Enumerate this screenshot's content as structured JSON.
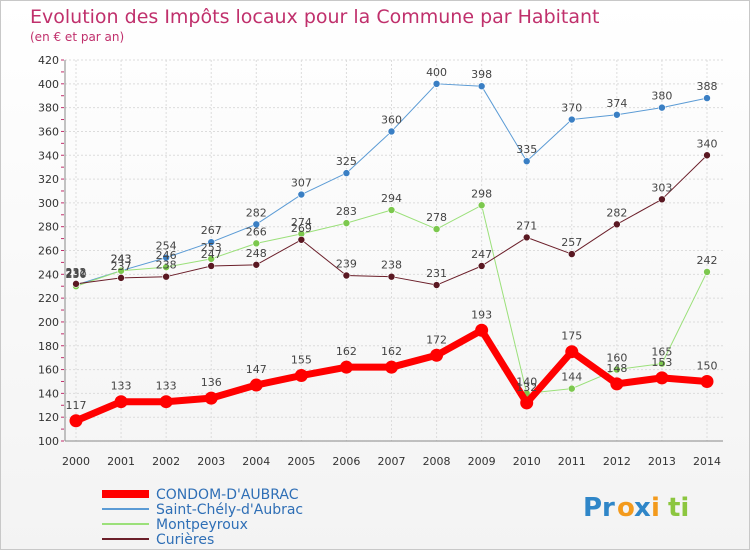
{
  "chart_data": {
    "type": "line",
    "title": "Evolution des Impôts locaux pour la Commune par Habitant",
    "subtitle": "(en € et par an)",
    "xlabel": "",
    "ylabel": "",
    "x": [
      "2000",
      "2001",
      "2002",
      "2003",
      "2004",
      "2005",
      "2006",
      "2007",
      "2008",
      "2009",
      "2010",
      "2011",
      "2012",
      "2013",
      "2014"
    ],
    "ylim": [
      100,
      420
    ],
    "yticks": [
      100,
      120,
      140,
      160,
      180,
      200,
      220,
      240,
      260,
      280,
      300,
      320,
      340,
      360,
      380,
      400,
      420
    ],
    "grid": true,
    "legend_position": "bottom",
    "series": [
      {
        "name": "Saint-Chély-d'Aubrac",
        "color": "#5b9bd5",
        "point_color": "#3a7fc4",
        "width": 1,
        "values": [
          231,
          243,
          254,
          267,
          282,
          307,
          325,
          360,
          400,
          398,
          335,
          370,
          374,
          380,
          388
        ]
      },
      {
        "name": "Montpeyroux",
        "color": "#9be07a",
        "point_color": "#7cc84e",
        "width": 1,
        "values": [
          230,
          243,
          246,
          253,
          266,
          274,
          283,
          294,
          278,
          298,
          140,
          144,
          160,
          165,
          242
        ]
      },
      {
        "name": "Curières",
        "color": "#6b1f2a",
        "point_color": "#5a1822",
        "width": 1,
        "values": [
          232,
          237,
          238,
          247,
          248,
          269,
          239,
          238,
          231,
          247,
          271,
          257,
          282,
          303,
          340
        ]
      },
      {
        "name": "CONDOM-D'AUBRAC",
        "color": "#ff0000",
        "point_color": "#ff0000",
        "width": 7,
        "values": [
          117,
          133,
          133,
          136,
          147,
          155,
          162,
          162,
          172,
          193,
          132,
          175,
          148,
          153,
          150
        ]
      }
    ]
  },
  "legend_order": [
    3,
    0,
    1,
    2
  ],
  "logo": {
    "parts": [
      "Pr",
      "o",
      "x",
      "i",
      "ti"
    ],
    "colors": [
      "#2f86c8",
      "#f39a1c",
      "#2f86c8",
      "#f39a1c",
      "#8cc63f"
    ]
  }
}
